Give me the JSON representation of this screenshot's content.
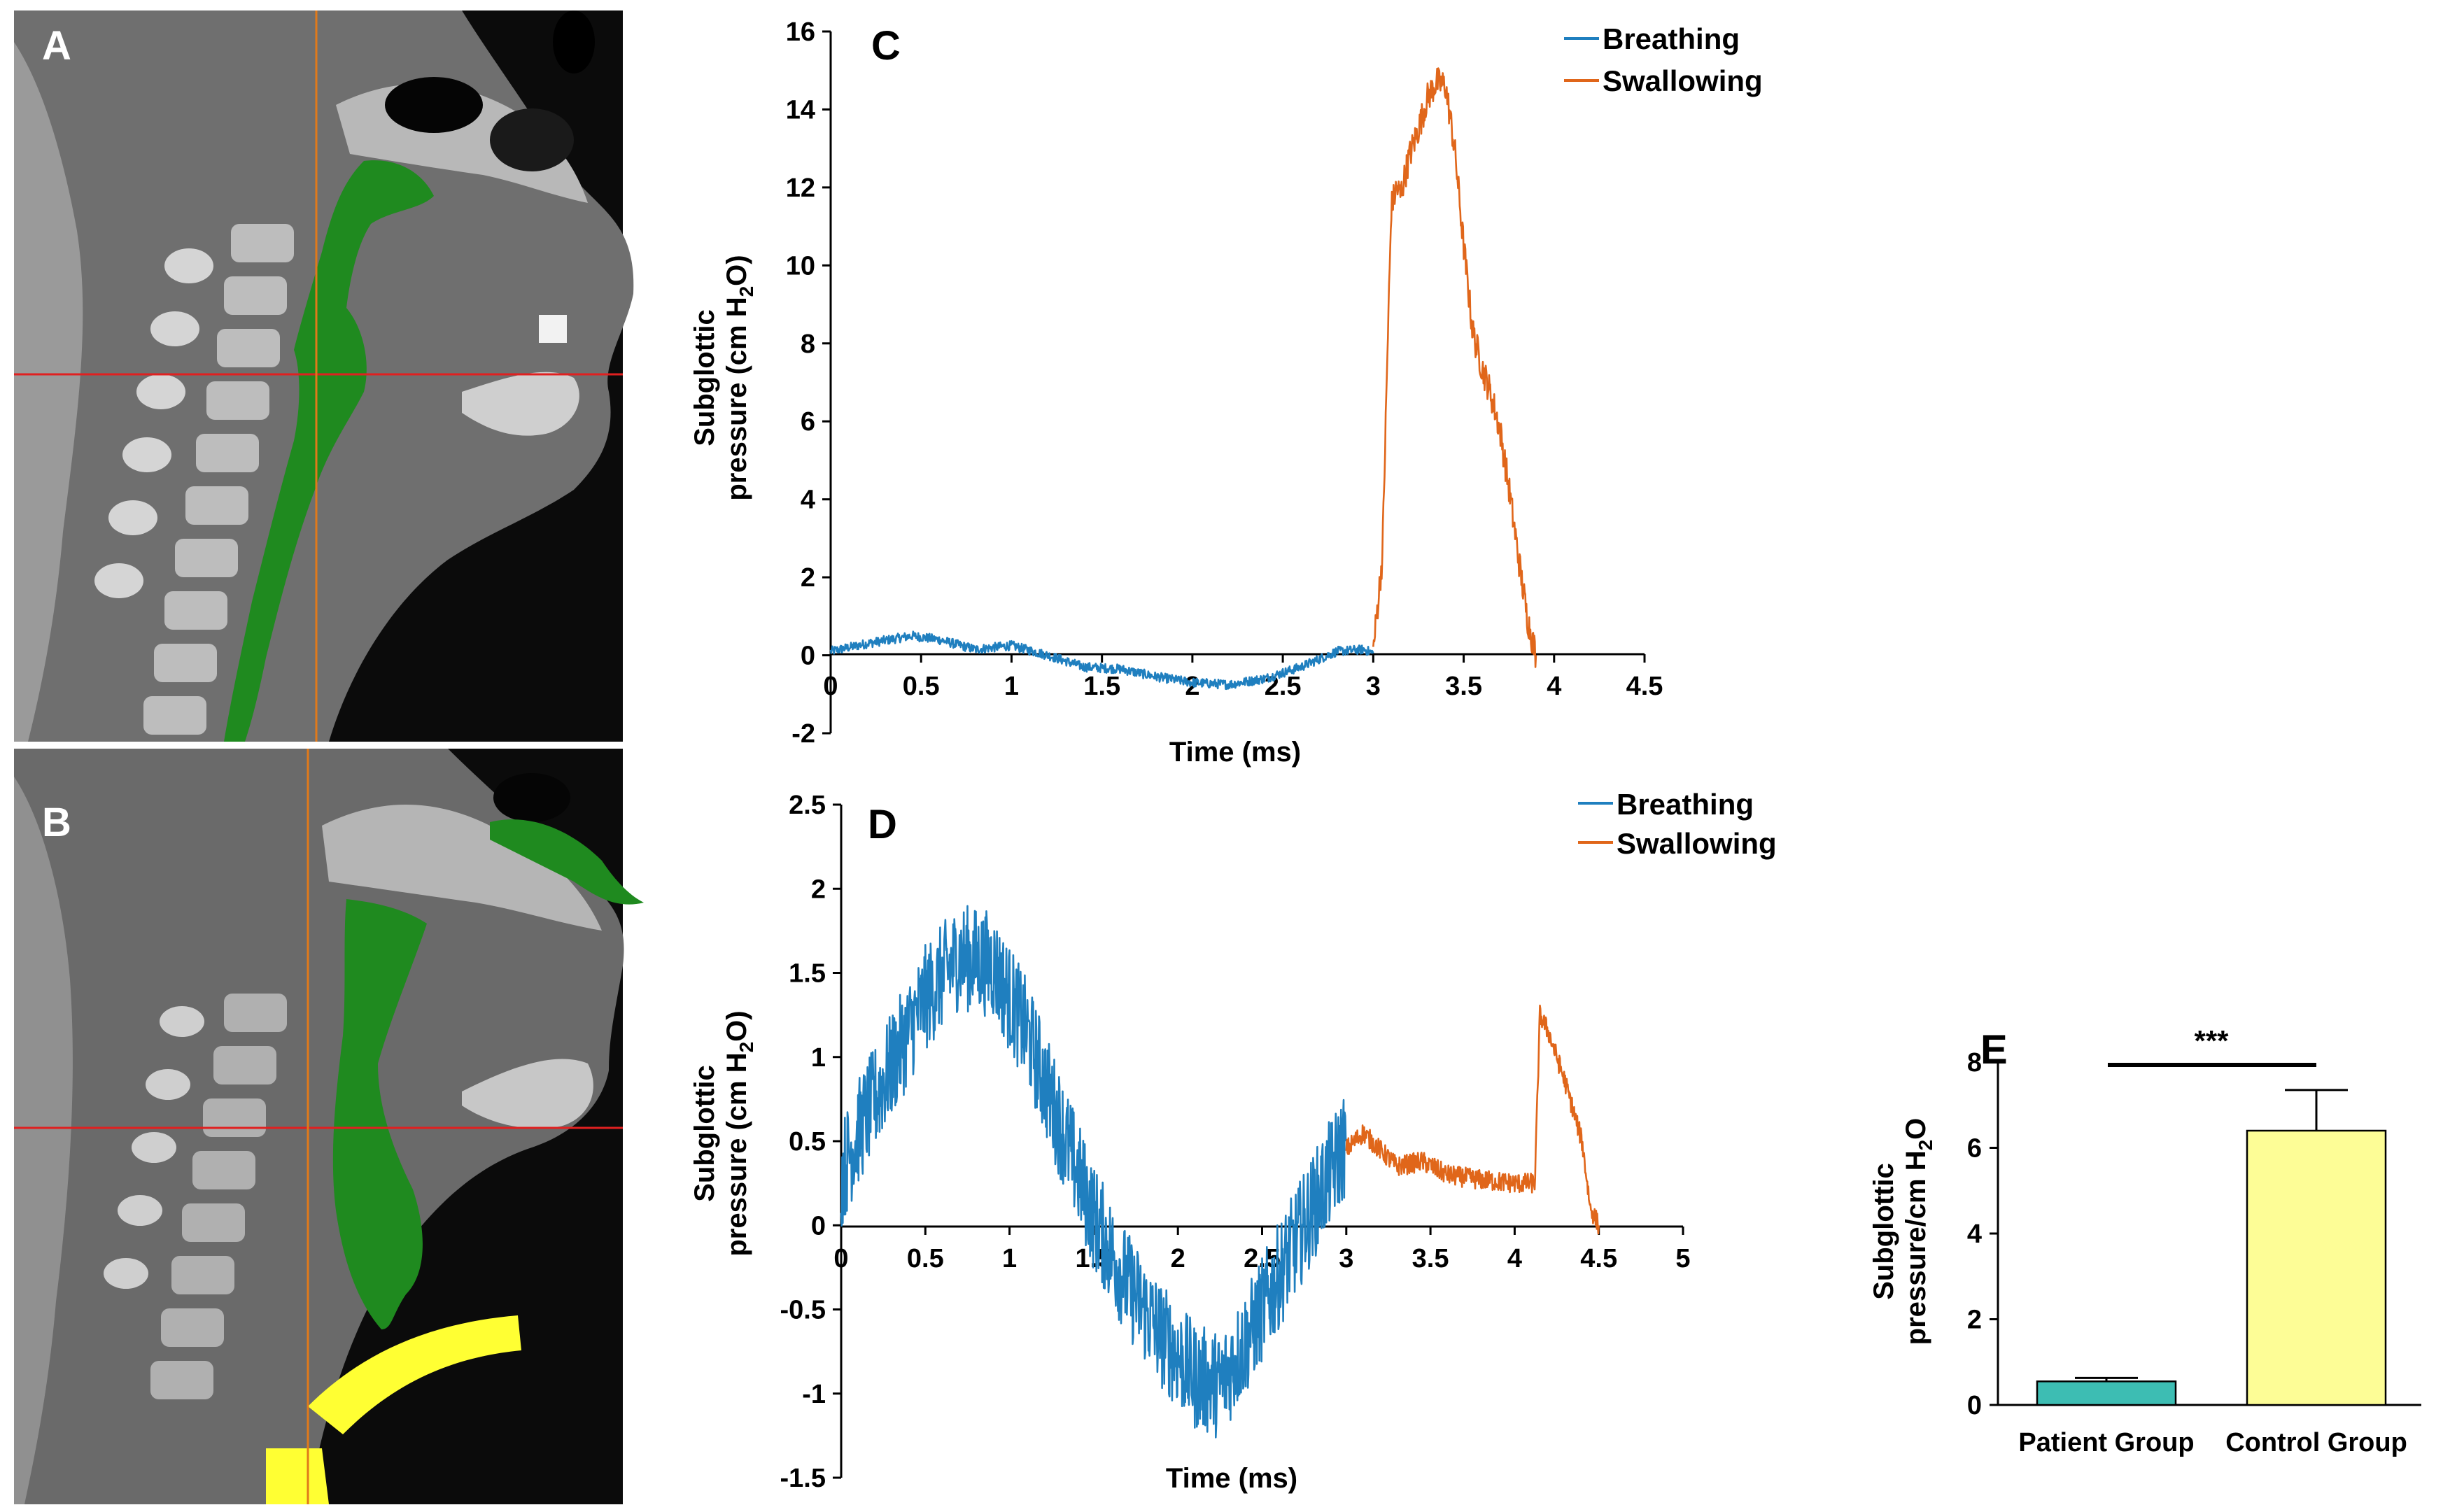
{
  "colors": {
    "breathing": "#1f7fbf",
    "swallowing": "#e0661a",
    "patient_bar": "#3dbdb3",
    "control_bar": "#fdfd96",
    "green_mask": "#1f8a1f",
    "yellow_mask": "#ffff33",
    "red_line": "#e02020",
    "orange_line": "#e07a1a"
  },
  "panels": {
    "a": {
      "label": "A"
    },
    "b": {
      "label": "B"
    }
  },
  "chart_data": [
    {
      "id": "C",
      "type": "line",
      "panel_label": "C",
      "xlabel": "Time (ms)",
      "ylabel_line1": "Subglottic",
      "ylabel_line2_pre": "pressure (cm H",
      "ylabel_line2_sub": "2",
      "ylabel_line2_post": "O)",
      "xlim": [
        0,
        4.5
      ],
      "ylim": [
        -2,
        16
      ],
      "xticks": [
        0,
        0.5,
        1,
        1.5,
        2,
        2.5,
        3,
        3.5,
        4,
        4.5
      ],
      "xtick_labels": [
        "0",
        "0.5",
        "1",
        "1.5",
        "2",
        "2.5",
        "3",
        "3.5",
        "4",
        "4.5"
      ],
      "yticks": [
        -2,
        0,
        2,
        4,
        6,
        8,
        10,
        12,
        14,
        16
      ],
      "ytick_labels": [
        "-2",
        "0",
        "2",
        "4",
        "6",
        "8",
        "10",
        "12",
        "14",
        "16"
      ],
      "legend": [
        "Breathing",
        "Swallowing"
      ],
      "series": [
        {
          "name": "Breathing",
          "x": [
            0,
            0.2,
            0.45,
            0.6,
            0.8,
            1.0,
            1.2,
            1.4,
            1.6,
            1.8,
            2.0,
            2.2,
            2.4,
            2.6,
            2.8,
            2.95,
            3.0
          ],
          "y": [
            0.1,
            0.3,
            0.5,
            0.4,
            0.15,
            0.25,
            0.0,
            -0.3,
            -0.35,
            -0.55,
            -0.7,
            -0.75,
            -0.6,
            -0.3,
            0.1,
            0.15,
            0.05
          ],
          "noise": 0.12
        },
        {
          "name": "Swallowing",
          "x": [
            3.0,
            3.05,
            3.08,
            3.1,
            3.13,
            3.15,
            3.2,
            3.25,
            3.3,
            3.35,
            3.4,
            3.45,
            3.5,
            3.55,
            3.6,
            3.65,
            3.7,
            3.75,
            3.8,
            3.85,
            3.9
          ],
          "y": [
            0.1,
            2.5,
            8.0,
            11.5,
            12.0,
            11.8,
            12.8,
            13.5,
            14.3,
            14.7,
            14.6,
            13.0,
            10.5,
            8.3,
            7.4,
            6.7,
            5.8,
            4.3,
            2.6,
            1.0,
            0.0
          ],
          "noise": 0.4
        }
      ]
    },
    {
      "id": "D",
      "type": "line",
      "panel_label": "D",
      "xlabel": "Time (ms)",
      "ylabel_line1": "Subglottic",
      "ylabel_line2_pre": "pressure (cm H",
      "ylabel_line2_sub": "2",
      "ylabel_line2_post": "O)",
      "xlim": [
        0,
        5
      ],
      "ylim": [
        -1.5,
        2.5
      ],
      "xticks": [
        0,
        0.5,
        1,
        1.5,
        2,
        2.5,
        3,
        3.5,
        4,
        4.5,
        5
      ],
      "xtick_labels": [
        "0",
        "0.5",
        "1",
        "1.5",
        "2",
        "2.5",
        "3",
        "3.5",
        "4",
        "4.5",
        "5"
      ],
      "yticks": [
        -1.5,
        -1,
        -0.5,
        0,
        0.5,
        1,
        1.5,
        2,
        2.5
      ],
      "ytick_labels": [
        "-1.5",
        "-1",
        "-0.5",
        "0",
        "0.5",
        "1",
        "1.5",
        "2",
        "2.5"
      ],
      "legend": [
        "Breathing",
        "Swallowing"
      ],
      "series": [
        {
          "name": "Breathing",
          "x": [
            0,
            0.1,
            0.3,
            0.5,
            0.7,
            0.9,
            1.1,
            1.3,
            1.5,
            1.7,
            1.9,
            2.1,
            2.25,
            2.4,
            2.6,
            2.8,
            3.0
          ],
          "y": [
            0.3,
            0.55,
            0.95,
            1.35,
            1.6,
            1.55,
            1.15,
            0.6,
            0.05,
            -0.35,
            -0.65,
            -0.9,
            -0.95,
            -0.7,
            -0.3,
            0.1,
            0.5
          ],
          "noise": 0.32
        },
        {
          "name": "Swallowing",
          "x": [
            3.0,
            3.1,
            3.2,
            3.3,
            3.45,
            3.6,
            3.8,
            4.0,
            4.12,
            4.15,
            4.2,
            4.3,
            4.4,
            4.45,
            4.5
          ],
          "y": [
            0.45,
            0.55,
            0.45,
            0.35,
            0.38,
            0.3,
            0.27,
            0.25,
            0.25,
            1.25,
            1.15,
            0.85,
            0.5,
            0.1,
            0.0
          ],
          "noise": 0.06
        }
      ]
    },
    {
      "id": "E",
      "type": "bar",
      "panel_label": "E",
      "ylabel_line1": "Subglottic",
      "ylabel_line2_pre": "pressure/cm H",
      "ylabel_line2_sub": "2",
      "ylabel_line2_post": "O",
      "categories": [
        "Patient Group",
        "Control Group"
      ],
      "values": [
        0.55,
        6.4
      ],
      "errors": [
        0.08,
        0.95
      ],
      "ylim": [
        0,
        8
      ],
      "yticks": [
        0,
        2,
        4,
        6,
        8
      ],
      "ytick_labels": [
        "0",
        "2",
        "4",
        "6",
        "8"
      ],
      "significance": "***"
    }
  ]
}
